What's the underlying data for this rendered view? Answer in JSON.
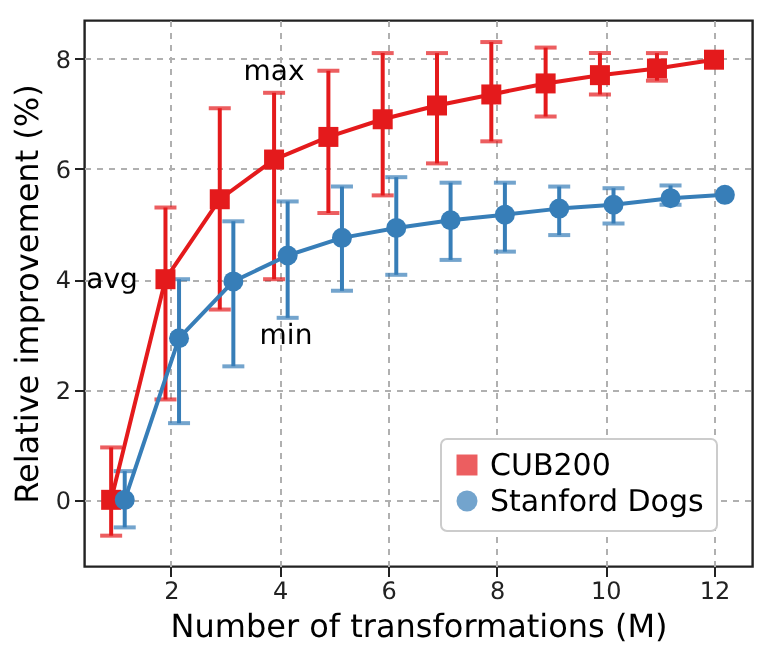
{
  "chart_data": {
    "type": "line",
    "xlabel": "Number of transformations (M)",
    "ylabel": "Relative improvement (%)",
    "xlim": [
      0.4,
      12.7
    ],
    "ylim": [
      -1.2,
      8.7
    ],
    "xticks": [
      2,
      4,
      6,
      8,
      10,
      12
    ],
    "yticks": [
      0,
      2,
      4,
      6,
      8
    ],
    "grid": true,
    "legend": "bottom right",
    "line_style": "solid",
    "annotations": [
      "max",
      "avg",
      "min"
    ],
    "series": [
      {
        "name": "CUB200",
        "color": "#e41a1c",
        "marker": "square",
        "x": [
          0.9,
          1.9,
          2.9,
          3.9,
          4.9,
          5.9,
          6.9,
          7.9,
          8.9,
          9.9,
          10.95,
          12.0
        ],
        "values": [
          0,
          4.0,
          5.45,
          6.17,
          6.58,
          6.9,
          7.15,
          7.35,
          7.55,
          7.7,
          7.82,
          7.98
        ],
        "errors": [
          [
            -0.65,
            0.95
          ],
          [
            1.82,
            5.3
          ],
          [
            3.45,
            7.1
          ],
          [
            4.0,
            7.38
          ],
          [
            5.2,
            7.78
          ],
          [
            5.52,
            8.1
          ],
          [
            6.1,
            8.1
          ],
          [
            6.5,
            8.3
          ],
          [
            6.95,
            8.2
          ],
          [
            7.35,
            8.1
          ],
          [
            7.6,
            8.1
          ],
          null
        ]
      },
      {
        "name": "Stanford Dogs",
        "color": "#377eb8",
        "marker": "circle",
        "x": [
          1.15,
          2.15,
          3.15,
          4.15,
          5.15,
          6.15,
          7.15,
          8.15,
          9.15,
          10.15,
          11.2,
          12.2
        ],
        "values": [
          0,
          2.93,
          3.96,
          4.43,
          4.75,
          4.93,
          5.07,
          5.17,
          5.28,
          5.35,
          5.47,
          5.53
        ],
        "errors": [
          [
            -0.5,
            0.52
          ],
          [
            1.39,
            4.0
          ],
          [
            2.42,
            5.05
          ],
          [
            3.3,
            5.41
          ],
          [
            3.79,
            5.68
          ],
          [
            4.08,
            5.85
          ],
          [
            4.35,
            5.75
          ],
          [
            4.5,
            5.75
          ],
          [
            4.8,
            5.68
          ],
          [
            5.01,
            5.65
          ],
          [
            5.35,
            5.7
          ],
          null
        ]
      }
    ]
  }
}
